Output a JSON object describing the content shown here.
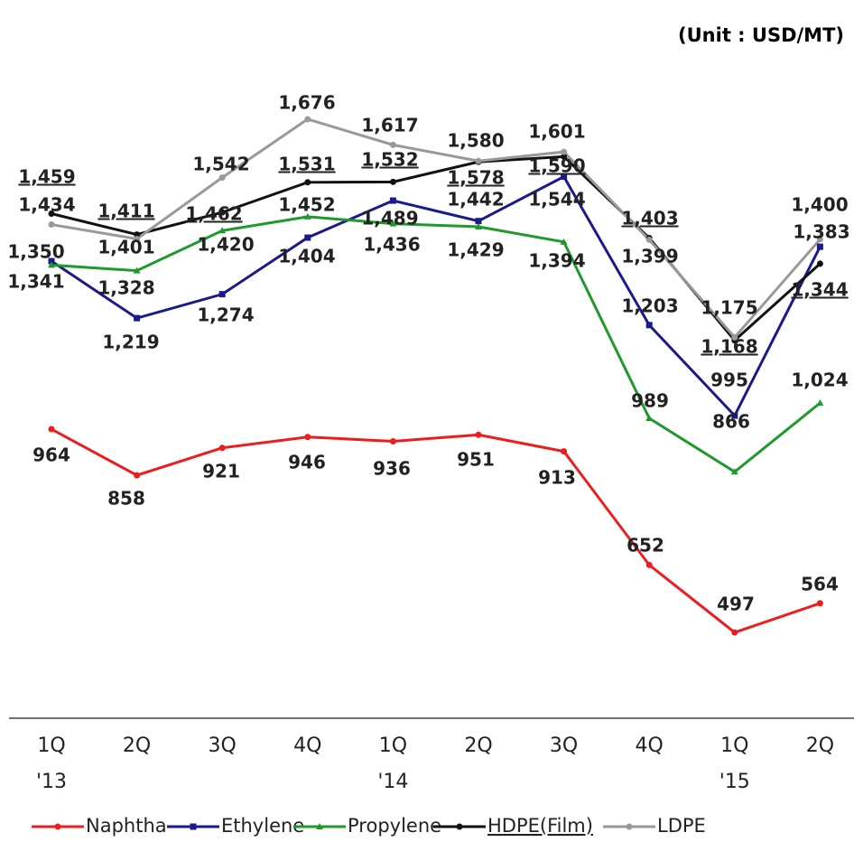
{
  "chart_data": {
    "type": "line",
    "unit_label": "(Unit : USD/MT)",
    "categories": [
      "1Q",
      "2Q",
      "3Q",
      "4Q",
      "1Q",
      "2Q",
      "3Q",
      "4Q",
      "1Q",
      "2Q"
    ],
    "category_years": [
      "'13",
      null,
      null,
      null,
      "'14",
      null,
      null,
      null,
      "'15",
      null
    ],
    "ylim": [
      300,
      1900
    ],
    "legend": "bottom",
    "series": [
      {
        "name": "Naphtha",
        "color": "#ee1c1c",
        "marker": "circle",
        "values": [
          964,
          858,
          921,
          946,
          936,
          951,
          913,
          652,
          497,
          564
        ],
        "value_labels": [
          "964",
          "858",
          "921",
          "946",
          "936",
          "951",
          "913",
          "652",
          "497",
          "564"
        ]
      },
      {
        "name": "Ethylene",
        "color": "#1a1a8c",
        "marker": "square",
        "values": [
          1350,
          1219,
          1274,
          1404,
          1489,
          1442,
          1544,
          1203,
          995,
          1383
        ],
        "value_labels": [
          "1,350",
          "1,219",
          "1,274",
          "1,404",
          "1,489",
          "1,442",
          "1,544",
          "1,203",
          "995",
          "1,383"
        ]
      },
      {
        "name": "Propylene",
        "color": "#1f9a2a",
        "marker": "triangle",
        "values": [
          1341,
          1328,
          1420,
          1452,
          1436,
          1429,
          1394,
          989,
          866,
          1024
        ],
        "value_labels": [
          "1,341",
          "1,328",
          "1,420",
          "1,452",
          "1,436",
          "1,429",
          "1,394",
          "989",
          "866",
          "1,024"
        ]
      },
      {
        "name": "HDPE(Film)",
        "color": "#111111",
        "marker": "circle",
        "underline": true,
        "values": [
          1459,
          1411,
          1462,
          1531,
          1532,
          1578,
          1590,
          1403,
          1168,
          1344
        ],
        "value_labels": [
          "1,459",
          "1,411",
          "1,462",
          "1,531",
          "1,532",
          "1,578",
          "1,590",
          "1,403",
          "1,168",
          "1,344"
        ]
      },
      {
        "name": "LDPE",
        "color": "#999999",
        "marker": "circle",
        "values": [
          1434,
          1401,
          1542,
          1676,
          1617,
          1580,
          1601,
          1399,
          1175,
          1400
        ],
        "value_labels": [
          "1,434",
          "1,401",
          "1,542",
          "1,676",
          "1,617",
          "1,580",
          "1,601",
          "1,399",
          "1,175",
          "1,400"
        ]
      }
    ]
  }
}
